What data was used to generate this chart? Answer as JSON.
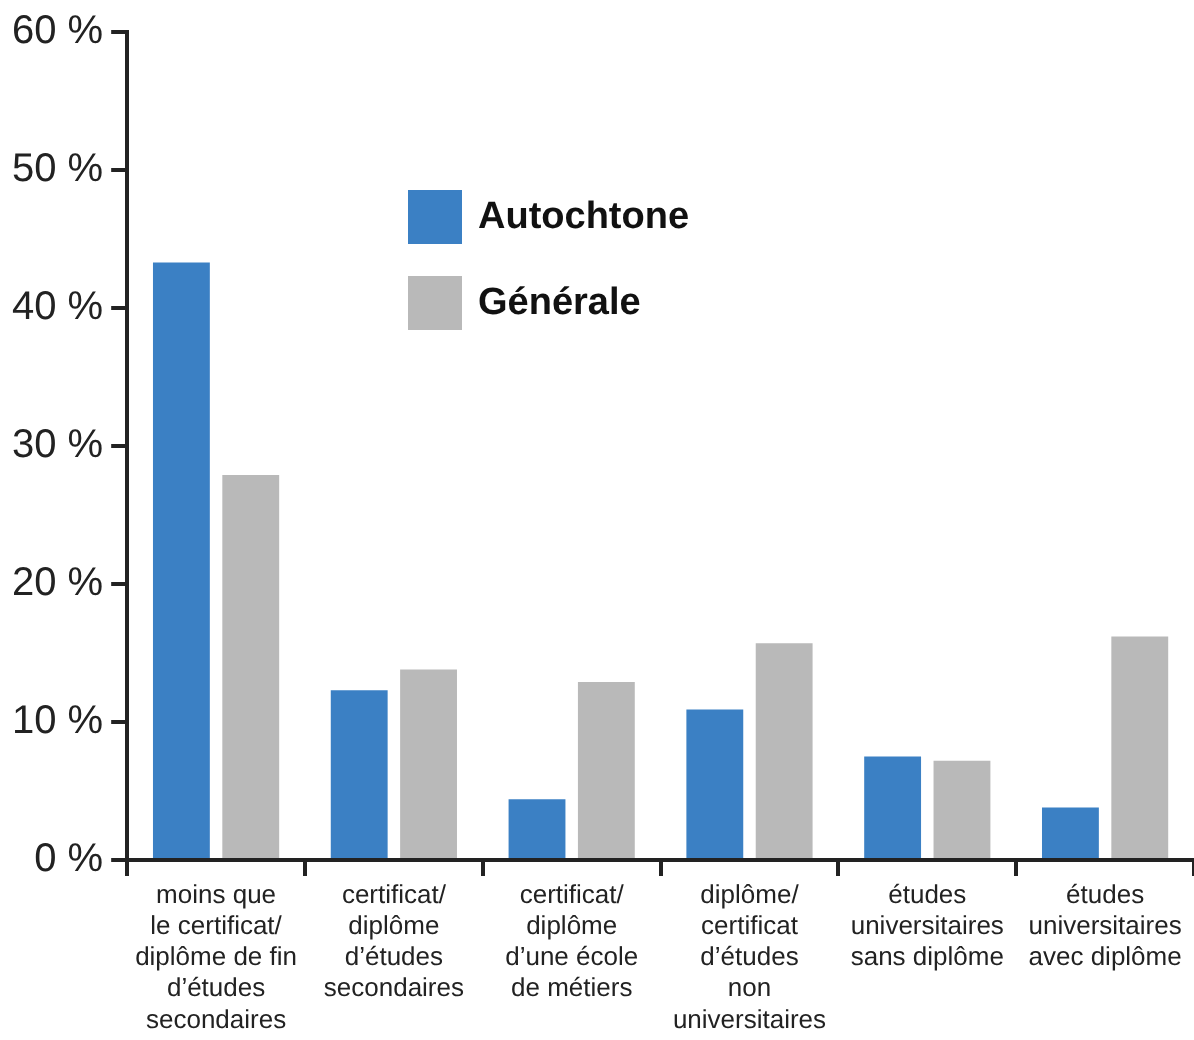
{
  "chart_data": {
    "type": "bar",
    "categories": [
      "moins que\nle certificat/\ndiplôme de fin\nd’études\nsecondaires",
      "certificat/\ndiplôme\nd’études\nsecondaires",
      "certificat/\ndiplôme\nd’une école\nde métiers",
      "diplôme/\ncertificat\nd’études\nnon\nuniversitaires",
      "études\nuniversitaires\nsans diplôme",
      "études\nuniversitaires\navec diplôme"
    ],
    "series": [
      {
        "name": "Autochtone",
        "color": "#3b80c4",
        "values": [
          43.3,
          12.3,
          4.4,
          10.9,
          7.5,
          3.8
        ]
      },
      {
        "name": "Générale",
        "color": "#b9b9b9",
        "values": [
          27.9,
          13.8,
          12.9,
          15.7,
          7.2,
          16.2
        ]
      }
    ],
    "ylim": [
      0,
      60
    ],
    "yticks": [
      {
        "value": 0,
        "label": "0 %"
      },
      {
        "value": 10,
        "label": "10 %"
      },
      {
        "value": 20,
        "label": "20 %"
      },
      {
        "value": 30,
        "label": "30 %"
      },
      {
        "value": 40,
        "label": "40 %"
      },
      {
        "value": 50,
        "label": "50 %"
      },
      {
        "value": 60,
        "label": "60 %"
      }
    ],
    "grid": false,
    "legend": "top"
  }
}
